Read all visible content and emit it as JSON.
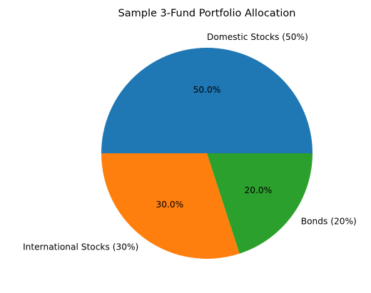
{
  "chart_data": {
    "type": "pie",
    "title": "Sample 3-Fund Portfolio Allocation",
    "slices": [
      {
        "label": "Domestic Stocks (50%)",
        "value": 50,
        "pct_label": "50.0%",
        "color": "#1f77b4"
      },
      {
        "label": "International Stocks (30%)",
        "value": 30,
        "pct_label": "30.0%",
        "color": "#ff7f0e"
      },
      {
        "label": "Bonds (20%)",
        "value": 20,
        "pct_label": "20.0%",
        "color": "#2ca02c"
      }
    ],
    "start_angle_deg": 0,
    "direction": "counterclockwise"
  }
}
